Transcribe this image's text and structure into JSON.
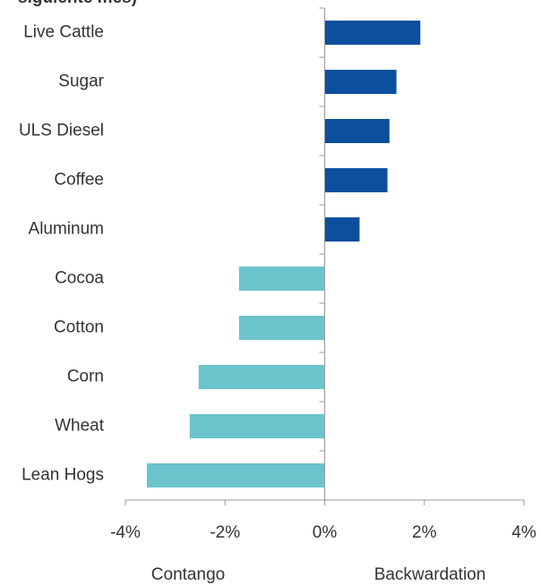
{
  "chart_data": {
    "type": "hbar",
    "title": "siguiente mes)",
    "categories": [
      "Live Cattle",
      "Sugar",
      "ULS Diesel",
      "Coffee",
      "Aluminum",
      "Cocoa",
      "Cotton",
      "Corn",
      "Wheat",
      "Lean Hogs"
    ],
    "values": [
      1.92,
      1.44,
      1.3,
      1.26,
      0.7,
      -1.72,
      -1.72,
      -2.53,
      -2.71,
      -3.57
    ],
    "colors": [
      "#0b4f9e",
      "#0b4f9e",
      "#0b4f9e",
      "#0b4f9e",
      "#0b4f9e",
      "#6bc4cc",
      "#6bc4cc",
      "#6bc4cc",
      "#6bc4cc",
      "#6bc4cc"
    ],
    "xlim": [
      -4,
      4
    ],
    "xticks": [
      {
        "value": -4,
        "label": "-4%"
      },
      {
        "value": -2,
        "label": "-2%"
      },
      {
        "value": 0,
        "label": "0%"
      },
      {
        "value": 2,
        "label": "2%"
      },
      {
        "value": 4,
        "label": "4%"
      }
    ],
    "annotations": [
      "Contango",
      "Backwardation"
    ]
  }
}
